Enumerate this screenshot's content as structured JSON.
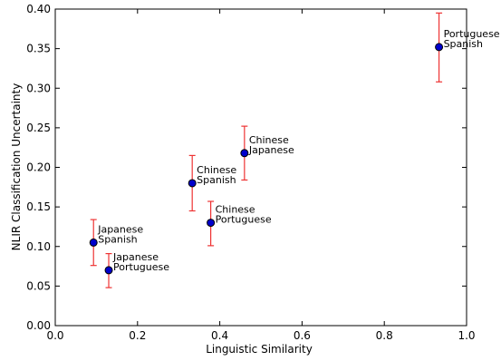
{
  "chart_data": {
    "type": "scatter",
    "xlabel": "Linguistic Similarity",
    "ylabel": "NLIR Classification Uncertainty",
    "xlim": [
      0.0,
      1.0
    ],
    "ylim": [
      0.0,
      0.4
    ],
    "xticks": [
      "0.0",
      "0.2",
      "0.4",
      "0.6",
      "0.8",
      "1.0"
    ],
    "yticks": [
      "0.00",
      "0.05",
      "0.10",
      "0.15",
      "0.20",
      "0.25",
      "0.30",
      "0.35",
      "0.40"
    ],
    "grid": false,
    "legend": "none",
    "marker_color": "#0000cc",
    "errorbar_color": "#ee3333",
    "points": [
      {
        "x": 0.093,
        "y": 0.105,
        "err_low": 0.076,
        "err_high": 0.134,
        "label": [
          "Japanese",
          "Spanish"
        ]
      },
      {
        "x": 0.13,
        "y": 0.07,
        "err_low": 0.048,
        "err_high": 0.091,
        "label": [
          "Japanese",
          "Portuguese"
        ]
      },
      {
        "x": 0.333,
        "y": 0.18,
        "err_low": 0.145,
        "err_high": 0.215,
        "label": [
          "Chinese",
          "Spanish"
        ]
      },
      {
        "x": 0.378,
        "y": 0.13,
        "err_low": 0.101,
        "err_high": 0.157,
        "label": [
          "Chinese",
          "Portuguese"
        ]
      },
      {
        "x": 0.46,
        "y": 0.218,
        "err_low": 0.184,
        "err_high": 0.252,
        "label": [
          "Chinese",
          "Japanese"
        ]
      },
      {
        "x": 0.933,
        "y": 0.352,
        "err_low": 0.308,
        "err_high": 0.395,
        "label": [
          "Portuguese",
          "Spanish"
        ]
      }
    ]
  }
}
